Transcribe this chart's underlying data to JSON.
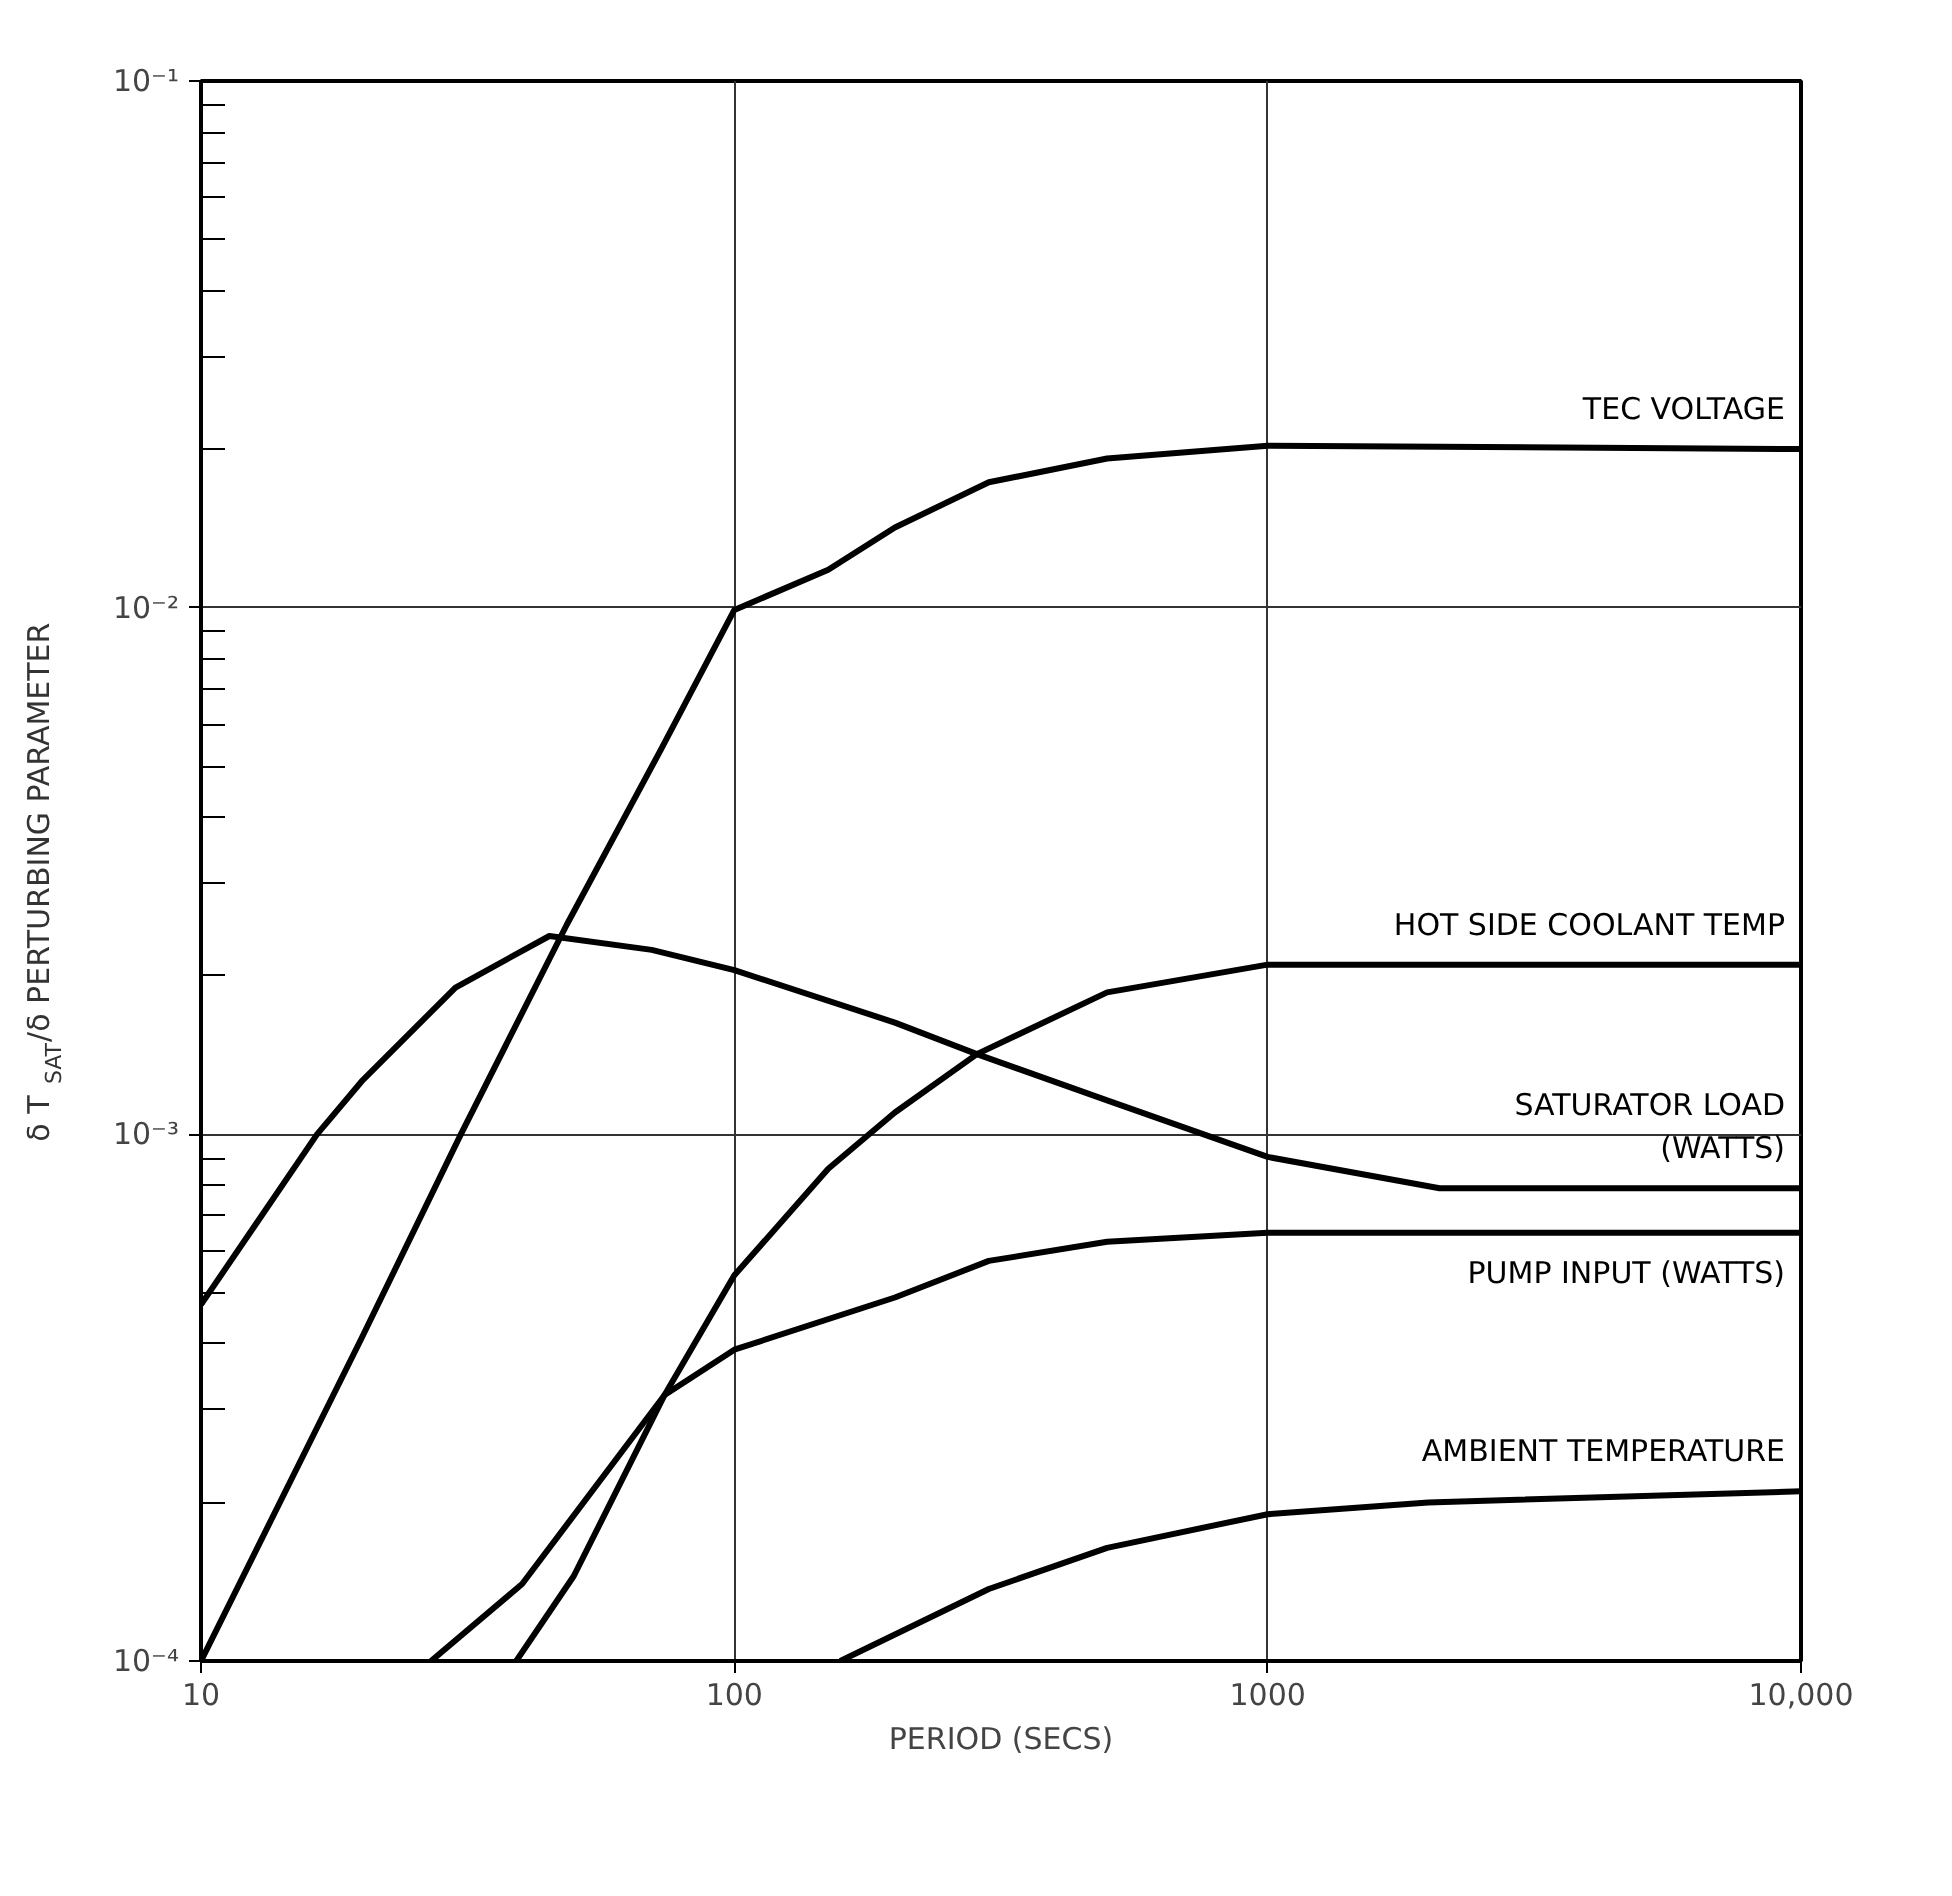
{
  "chart_data": {
    "type": "line",
    "xlabel": "PERIOD (SECS)",
    "ylabel": "δ T$_{SAT}$/δ PERTURBING PARAMETER",
    "log": "xy",
    "grid": true,
    "marker": "none",
    "line_style": "solid",
    "xlim": [
      10,
      10000
    ],
    "ylim": [
      0.0001,
      0.1
    ],
    "xticks": [
      10,
      100,
      1000,
      {
        "value": 10000,
        "label": "10,000"
      }
    ],
    "yticks": [
      {
        "value": 0.0001,
        "label": "10⁻⁴"
      },
      {
        "value": 0.001,
        "label": "10⁻³"
      },
      {
        "value": 0.01,
        "label": "10⁻²"
      },
      {
        "value": 0.1,
        "label": "10⁻¹"
      }
    ],
    "series": [
      {
        "name": "TEC VOLTAGE",
        "color": "#000000",
        "x": [
          10,
          20,
          30.7,
          48.5,
          73,
          100,
          150,
          200,
          300,
          500,
          1000,
          10000
        ],
        "values": [
          0.0001,
          0.00041,
          0.001,
          0.0025,
          0.0054,
          0.0099,
          0.0118,
          0.0142,
          0.0173,
          0.0192,
          0.0203,
          0.02
        ]
      },
      {
        "name": "HOT SIDE COOLANT TEMP",
        "color": "#000000",
        "x": [
          39,
          50,
          74,
          100,
          150,
          200,
          285,
          500,
          1000,
          10000
        ],
        "values": [
          0.0001,
          0.000145,
          0.00032,
          0.00054,
          0.00086,
          0.0011,
          0.00142,
          0.00186,
          0.0021,
          0.0021
        ]
      },
      {
        "name": "SATURATOR LOAD\n(WATTS)",
        "color": "#000000",
        "x": [
          10,
          16.5,
          20,
          30,
          45,
          70,
          100,
          200,
          285,
          500,
          1000,
          2100,
          10000
        ],
        "values": [
          0.000475,
          0.001,
          0.00126,
          0.0019,
          0.00238,
          0.00224,
          0.00205,
          0.00163,
          0.00142,
          0.00116,
          0.000906,
          0.00079,
          0.00079
        ]
      },
      {
        "name": "PUMP INPUT (WATTS)",
        "color": "#000000",
        "x": [
          27,
          40,
          74,
          100,
          200,
          300,
          500,
          1000,
          10000
        ],
        "values": [
          0.0001,
          0.00014,
          0.00032,
          0.00039,
          0.00049,
          0.000575,
          0.000625,
          0.00065,
          0.00065
        ]
      },
      {
        "name": "AMBIENT TEMPERATURE",
        "color": "#000000",
        "x": [
          158,
          300,
          500,
          1000,
          2000,
          10000
        ],
        "values": [
          0.0001,
          0.000137,
          0.000164,
          0.00019,
          0.0002,
          0.00021
        ]
      }
    ]
  }
}
